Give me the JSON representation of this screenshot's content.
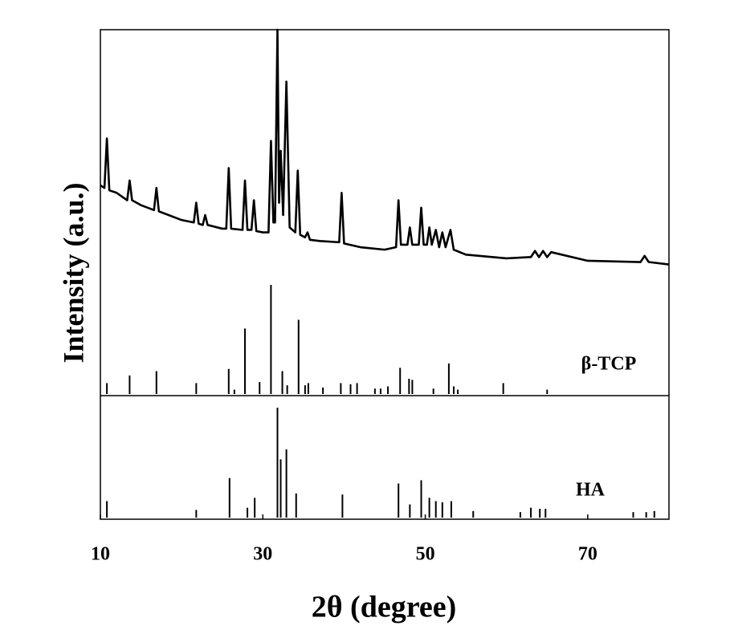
{
  "chart_data": [
    {
      "type": "line",
      "ylabel": "Intensity (a.u.)",
      "color": "#000000",
      "xlim": [
        10,
        80
      ],
      "ylim": [
        0,
        100
      ],
      "x": [
        10,
        10.5,
        10.8,
        11.1,
        12,
        13.3,
        13.6,
        13.9,
        15,
        16.6,
        16.9,
        17.2,
        20,
        21.5,
        21.8,
        22.1,
        22.6,
        22.9,
        23.2,
        25,
        25.5,
        25.8,
        26.1,
        27.5,
        27.8,
        28.1,
        28.6,
        28.9,
        29.2,
        30,
        30.7,
        31,
        31.3,
        31.5,
        31.8,
        32.0,
        32.2,
        32.5,
        32.9,
        33.3,
        34,
        34.3,
        34.6,
        35.2,
        35.5,
        35.8,
        37,
        39.4,
        39.7,
        40,
        42,
        45,
        46.4,
        46.7,
        47,
        47.8,
        48.1,
        48.4,
        49.2,
        49.5,
        49.8,
        50.2,
        50.5,
        50.8,
        51.3,
        51.7,
        52.1,
        52.5,
        53.1,
        53.5,
        55,
        60,
        63,
        63.5,
        64,
        64.5,
        65,
        65.5,
        70,
        76.5,
        77,
        77.5,
        80
      ],
      "values": [
        37,
        36,
        56,
        35,
        34,
        31,
        39,
        31,
        29,
        27,
        36,
        26.5,
        23,
        22,
        30,
        21.5,
        21,
        25,
        21,
        19.5,
        19.5,
        44,
        19.5,
        19,
        39,
        19,
        19,
        31,
        18.5,
        18,
        18,
        55,
        22,
        22,
        100,
        30,
        51,
        25,
        79,
        20,
        18,
        43,
        17,
        16,
        18,
        15,
        14.5,
        14,
        34,
        13.5,
        12,
        11,
        12,
        31,
        13,
        13,
        20,
        13,
        13,
        28,
        13,
        13,
        20,
        13,
        19,
        12,
        18,
        12,
        19,
        11,
        9,
        7.5,
        8,
        10.5,
        8,
        10.5,
        8,
        10,
        6.5,
        6,
        8.5,
        6,
        5
      ]
    },
    {
      "type": "stick",
      "name": "β-TCP",
      "color": "#000000",
      "xlim": [
        10,
        80
      ],
      "ylim": [
        0,
        100
      ],
      "x": [
        10.8,
        13.6,
        16.9,
        21.8,
        25.8,
        26.5,
        27.8,
        29.6,
        31.0,
        32.4,
        33.0,
        34.4,
        35.2,
        35.6,
        37.4,
        39.6,
        40.8,
        41.6,
        43.8,
        44.5,
        45.4,
        46.9,
        48.0,
        48.4,
        51.0,
        52.9,
        53.5,
        54,
        59.6,
        65
      ],
      "values": [
        10,
        17,
        21,
        10,
        23,
        4,
        60,
        11,
        100,
        21,
        8,
        68,
        8,
        10,
        6,
        10,
        9,
        10,
        5,
        5,
        7,
        24,
        14,
        13,
        5,
        28,
        7,
        4,
        10,
        4
      ]
    },
    {
      "type": "stick",
      "name": "HA",
      "color": "#000000",
      "xlabel": "2θ (degree)",
      "xlim": [
        10,
        80
      ],
      "ylim": [
        0,
        100
      ],
      "xticks": [
        10,
        30,
        50,
        70
      ],
      "x": [
        10.8,
        21.8,
        25.9,
        28.1,
        29.0,
        31.8,
        32.2,
        32.9,
        34.1,
        39.8,
        46.7,
        48.1,
        49.5,
        50.5,
        51.3,
        52.1,
        53.2,
        55.9,
        61.7,
        63.0,
        64.1,
        64.8,
        75.6,
        77.2,
        78.2
      ],
      "values": [
        15,
        7,
        36,
        9,
        18,
        100,
        53,
        62,
        22,
        21,
        31,
        12,
        34,
        18,
        15,
        14,
        15,
        6,
        5,
        9,
        8,
        8,
        5,
        5,
        6
      ]
    }
  ]
}
